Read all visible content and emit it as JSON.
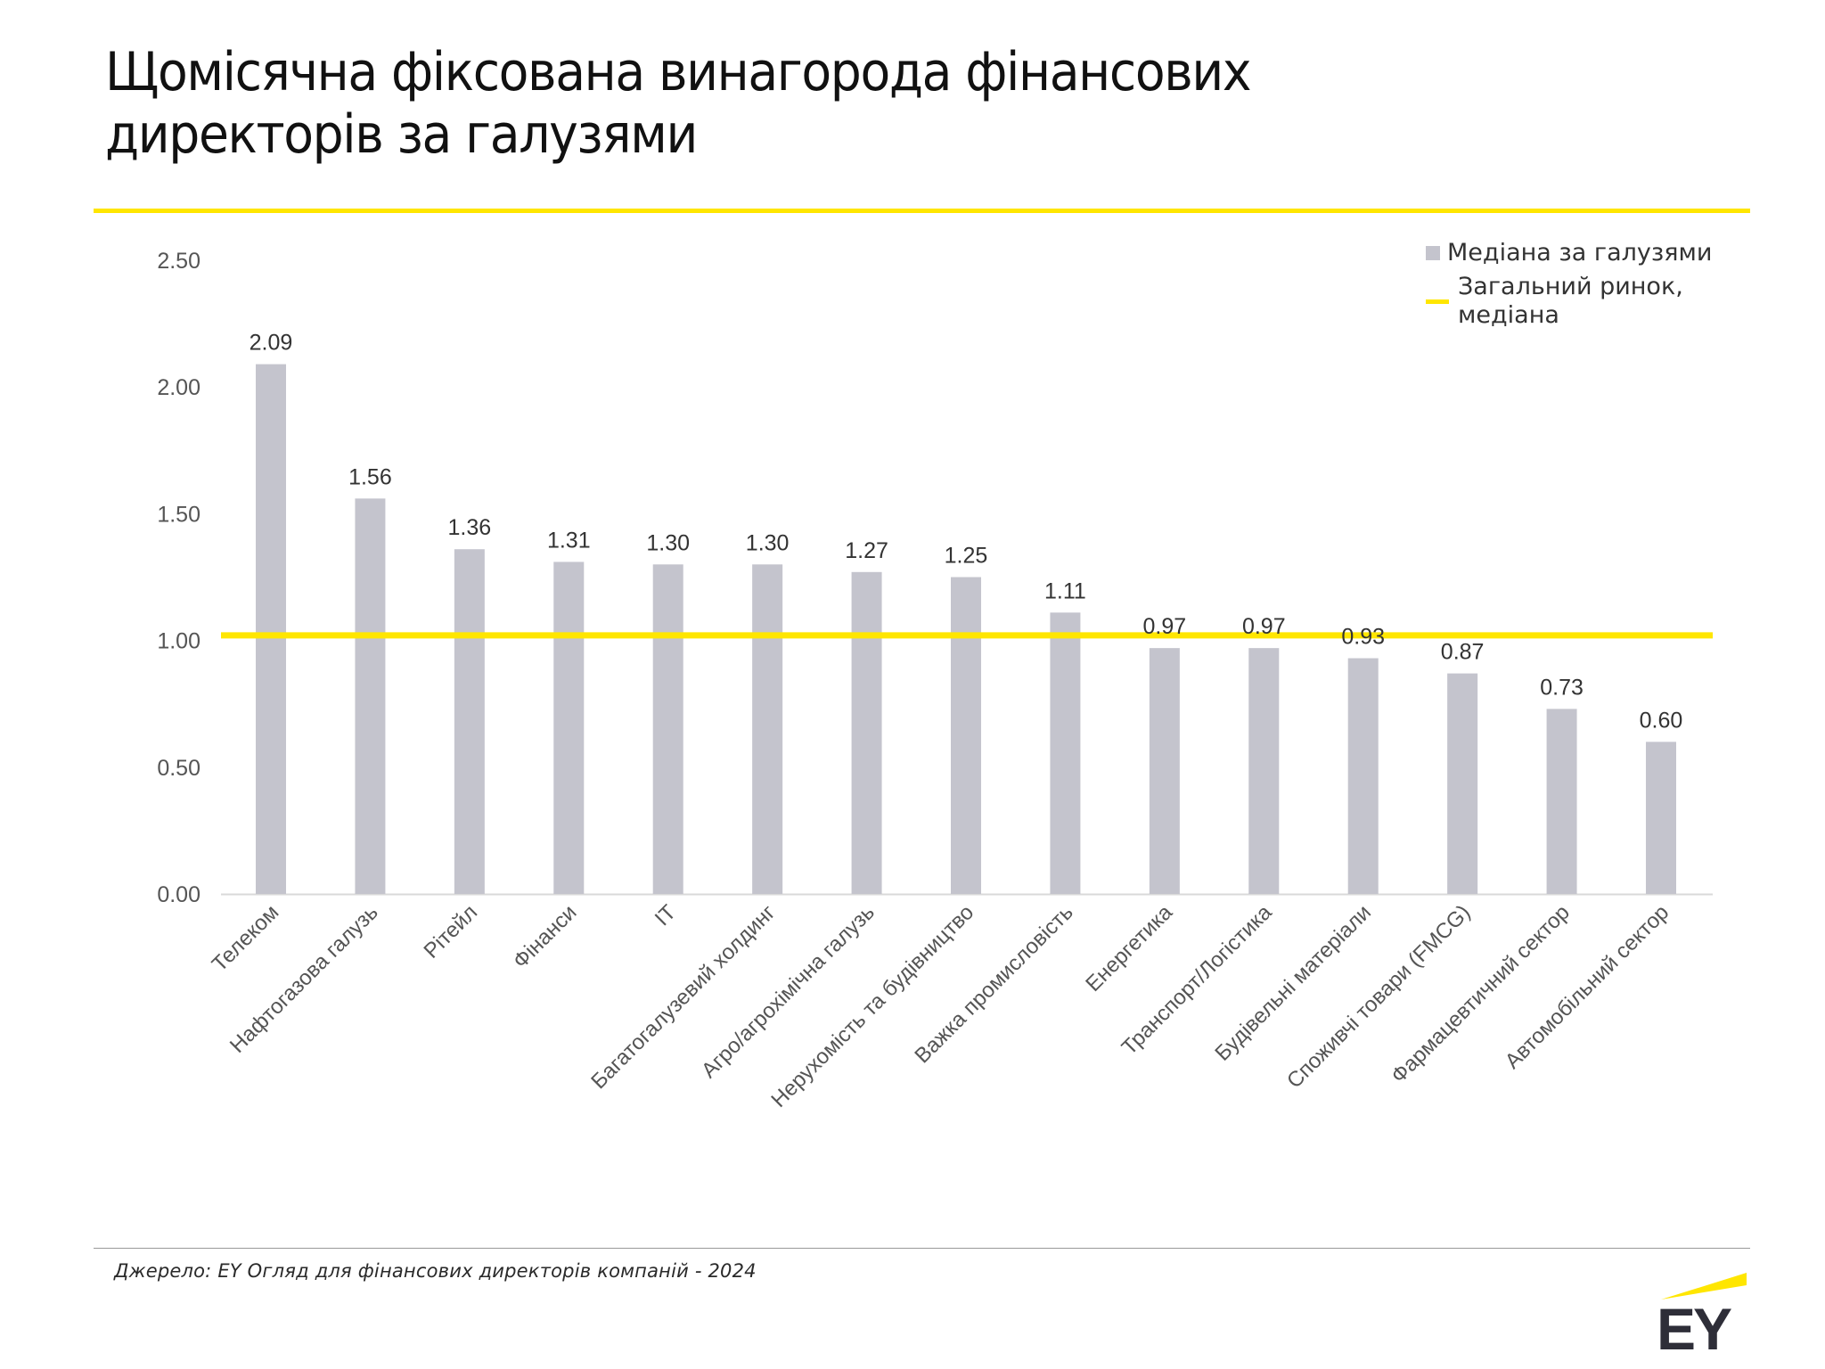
{
  "title": {
    "line1": "Щомісячна фіксована винагорода фінансових",
    "line2": "директорів за галузями"
  },
  "legend": {
    "bar_label": "Медіана за галузями",
    "line_label": "Загальний ринок,\nмедіана"
  },
  "source": "Джерело: EY Огляд для фінансових директорів компаній - 2024",
  "logo": {
    "text": "EY"
  },
  "colors": {
    "bar": "#c4c4cd",
    "accent_yellow": "#ffe600",
    "text_dark": "#2e2e38",
    "axis_text": "#555555"
  },
  "chart_data": {
    "type": "bar",
    "title": "Щомісячна фіксована винагорода фінансових директорів за галузями",
    "xlabel": "",
    "ylabel": "",
    "ylim": [
      0,
      2.5
    ],
    "yticks": [
      0.0,
      0.5,
      1.0,
      1.5,
      2.0,
      2.5
    ],
    "ytick_labels": [
      "0.00",
      "0.50",
      "1.00",
      "1.50",
      "2.00",
      "2.50"
    ],
    "grid": false,
    "legend_position": "top-right",
    "categories": [
      "Телеком",
      "Нафтогазова галузь",
      "Рітейл",
      "Фінанси",
      "IT",
      "Багатогалузевий холдинг",
      "Агро/агрохімічна галузь",
      "Нерухомість та будівництво",
      "Важка промисловість",
      "Енергетика",
      "Транспорт/Логістика",
      "Будівельні матеріали",
      "Споживчі товари (FMCG)",
      "Фармацевтичний сектор",
      "Автомобільний сектор"
    ],
    "series": [
      {
        "name": "Медіана за галузями",
        "type": "bar",
        "values": [
          2.09,
          1.56,
          1.36,
          1.31,
          1.3,
          1.3,
          1.27,
          1.25,
          1.11,
          0.97,
          0.97,
          0.93,
          0.87,
          0.73,
          0.6
        ],
        "labels": [
          "2.09",
          "1.56",
          "1.36",
          "1.31",
          "1.30",
          "1.30",
          "1.27",
          "1.25",
          "1.11",
          "0.97",
          "0.97",
          "0.93",
          "0.87",
          "0.73",
          "0.60"
        ]
      },
      {
        "name": "Загальний ринок, медіана",
        "type": "hline",
        "value": 1.02
      }
    ]
  }
}
